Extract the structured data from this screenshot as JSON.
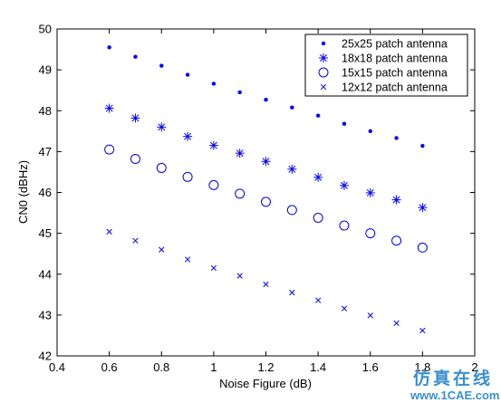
{
  "chart_data": {
    "type": "scatter",
    "title": "",
    "xlabel": "Noise Figure (dB)",
    "ylabel": "CN0 (dBHz)",
    "xlim": [
      0.4,
      2
    ],
    "ylim": [
      42,
      50
    ],
    "x_ticks": [
      "0.4",
      "0.6",
      "0.8",
      "1",
      "1.2",
      "1.4",
      "1.6",
      "1.8",
      "2"
    ],
    "y_ticks": [
      "42",
      "43",
      "44",
      "45",
      "46",
      "47",
      "48",
      "49",
      "50"
    ],
    "grid": false,
    "legend_position": "top-right",
    "x": [
      0.6,
      0.7,
      0.8,
      0.9,
      1.0,
      1.1,
      1.2,
      1.3,
      1.4,
      1.5,
      1.6,
      1.7,
      1.8
    ],
    "series": [
      {
        "name": "25x25 patch antenna",
        "marker": "dot",
        "color": "#0000ff",
        "values": [
          49.55,
          49.32,
          49.1,
          48.88,
          48.66,
          48.45,
          48.27,
          48.08,
          47.88,
          47.68,
          47.5,
          47.33,
          47.14
        ]
      },
      {
        "name": "18x18 patch antenna",
        "marker": "star",
        "color": "#0000ff",
        "values": [
          48.06,
          47.82,
          47.6,
          47.37,
          47.15,
          46.96,
          46.76,
          46.57,
          46.37,
          46.17,
          45.99,
          45.82,
          45.63
        ]
      },
      {
        "name": "15x15 patch antenna",
        "marker": "circle",
        "color": "#0000ff",
        "values": [
          47.05,
          46.82,
          46.6,
          46.38,
          46.18,
          45.97,
          45.77,
          45.57,
          45.38,
          45.19,
          45.0,
          44.82,
          44.65
        ]
      },
      {
        "name": "12x12 patch antenna",
        "marker": "x",
        "color": "#0000ff",
        "values": [
          45.04,
          44.82,
          44.6,
          44.36,
          44.15,
          43.96,
          43.75,
          43.55,
          43.36,
          43.16,
          42.99,
          42.8,
          42.62
        ]
      }
    ]
  },
  "watermark": {
    "chinese": "仿真在线",
    "url": "www.1CAE.com"
  }
}
